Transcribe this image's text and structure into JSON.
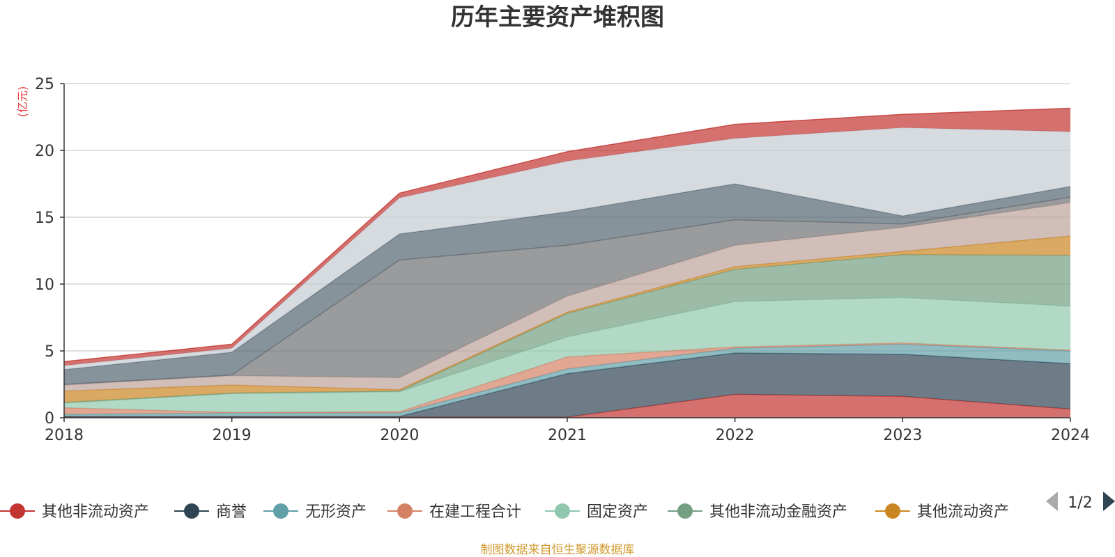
{
  "chart_data": {
    "type": "area",
    "stacked": true,
    "title": "历年主要资产堆积图",
    "unit_label": "(亿元)",
    "x": [
      "2018",
      "2019",
      "2020",
      "2021",
      "2022",
      "2023",
      "2024"
    ],
    "ylim": [
      0,
      25
    ],
    "yticks": [
      0,
      5,
      10,
      15,
      20,
      25
    ],
    "grid": true,
    "legend_position": "bottom",
    "series": [
      {
        "name": "其他非流动资产",
        "color": "#c23531",
        "values": [
          0.05,
          0.05,
          0.05,
          0.05,
          1.75,
          1.6,
          0.65
        ]
      },
      {
        "name": "商誉",
        "color": "#2f4554",
        "values": [
          0.05,
          0.05,
          0.05,
          3.25,
          3.1,
          3.15,
          3.4
        ]
      },
      {
        "name": "无形资产",
        "color": "#61a0a8",
        "values": [
          0.15,
          0.25,
          0.25,
          0.35,
          0.35,
          0.75,
          0.95
        ]
      },
      {
        "name": "在建工程合计",
        "color": "#d48265",
        "values": [
          0.5,
          0.05,
          0.1,
          0.9,
          0.1,
          0.1,
          0.05
        ]
      },
      {
        "name": "固定资产",
        "color": "#91c7ae",
        "values": [
          0.35,
          1.4,
          1.5,
          1.5,
          3.4,
          3.4,
          3.3
        ]
      },
      {
        "name": "其他非流动金融资产",
        "color": "#749f83",
        "values": [
          0.05,
          0.05,
          0.05,
          1.75,
          2.4,
          3.2,
          3.8
        ]
      },
      {
        "name": "其他流动资产",
        "color": "#ca8622",
        "values": [
          0.85,
          0.6,
          0.1,
          0.1,
          0.2,
          0.25,
          1.45
        ]
      },
      {
        "name": "",
        "color": "#bda29a",
        "values": [
          0.45,
          0.7,
          0.9,
          1.2,
          1.6,
          1.8,
          2.5
        ]
      },
      {
        "name": "",
        "color": "#6e7074",
        "values": [
          0.05,
          0.05,
          8.8,
          3.8,
          1.9,
          0.25,
          0.4
        ]
      },
      {
        "name": "",
        "color": "#546570",
        "values": [
          1.1,
          1.7,
          1.95,
          2.5,
          2.7,
          0.6,
          0.8
        ]
      },
      {
        "name": "",
        "color": "#c4ccd3",
        "values": [
          0.3,
          0.3,
          2.7,
          3.8,
          3.4,
          6.6,
          4.1
        ]
      },
      {
        "name": "",
        "color": "#c23531",
        "values": [
          0.3,
          0.3,
          0.35,
          0.7,
          1.05,
          1.0,
          1.75
        ]
      }
    ],
    "legend": {
      "visible_count": 7,
      "page_text": "1/2"
    },
    "source_note": "制图数据来自恒生聚源数据库"
  }
}
